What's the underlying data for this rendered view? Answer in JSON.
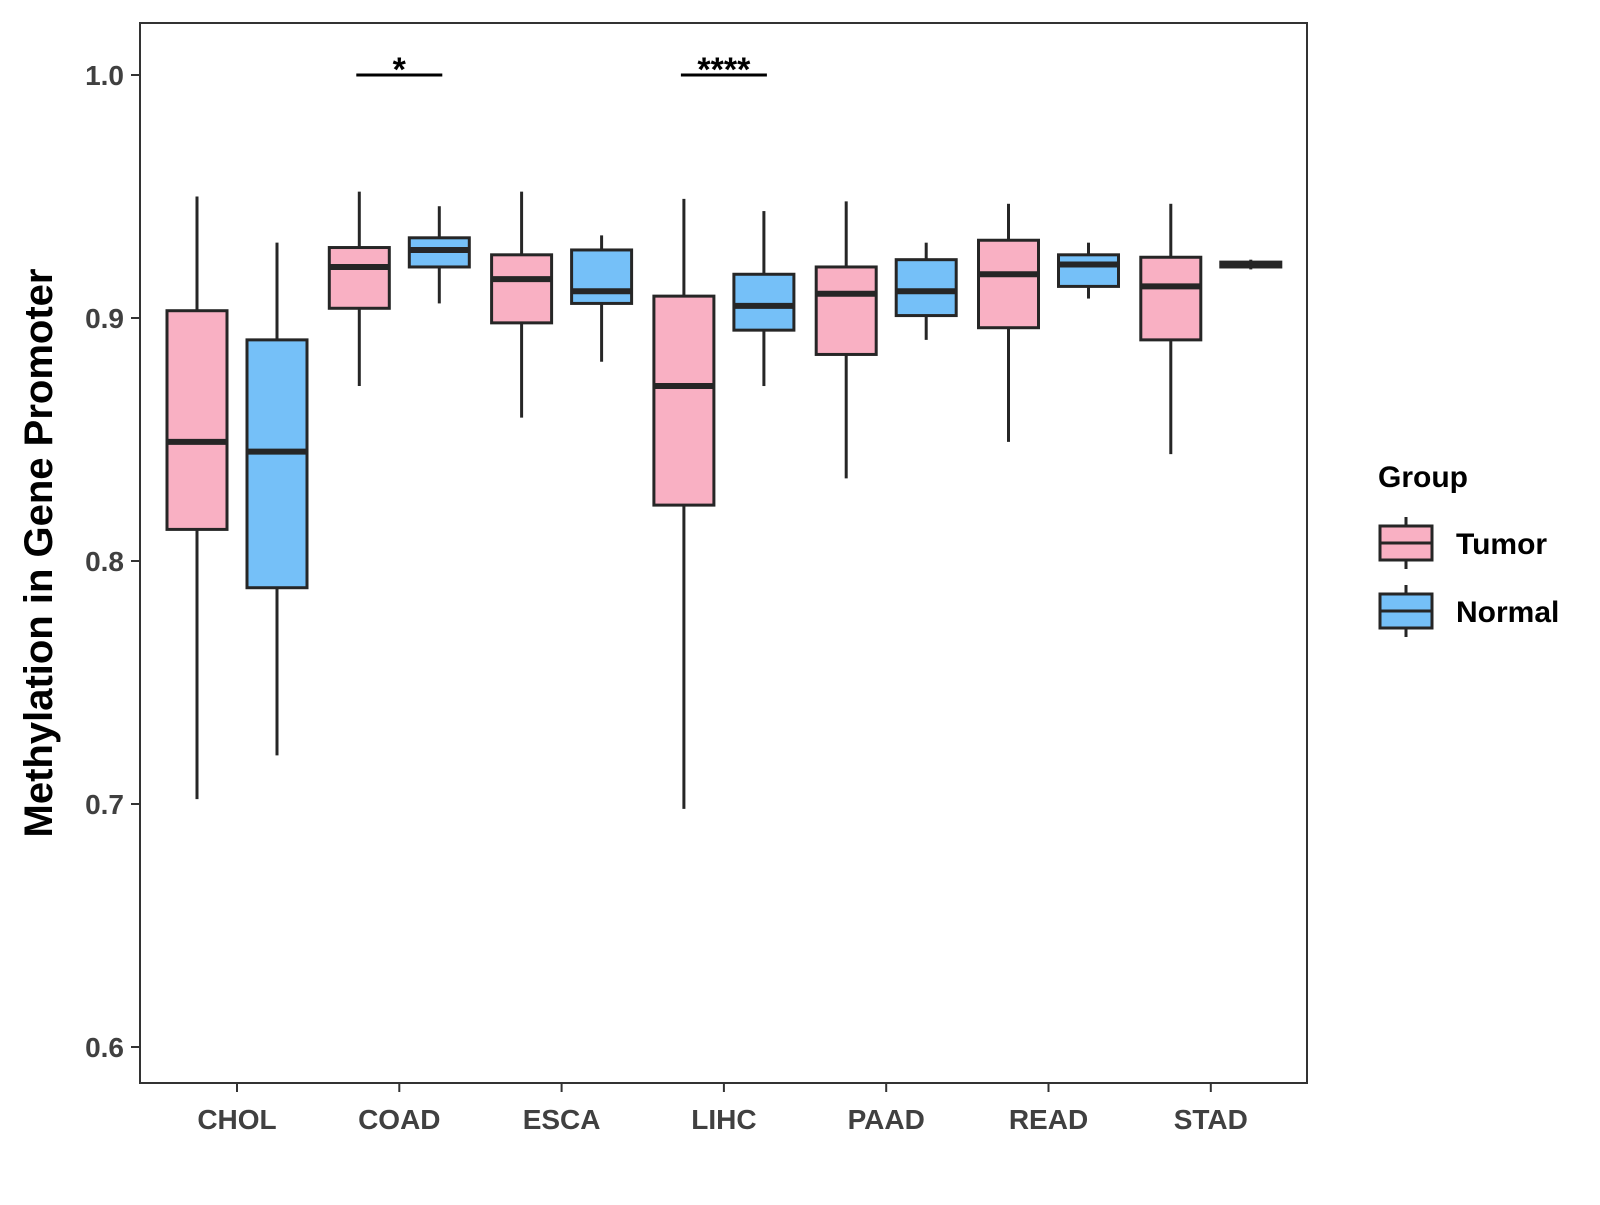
{
  "chart_data": {
    "type": "boxplot",
    "title": "",
    "xlabel": "",
    "ylabel": "Methylation in Gene Promoter",
    "ylim": [
      0.59,
      1.02
    ],
    "yticks": [
      0.6,
      0.7,
      0.8,
      0.9,
      1.0
    ],
    "ytick_labels": [
      "0.6",
      "0.7",
      "0.8",
      "0.9",
      "1.0"
    ],
    "categories": [
      "CHOL",
      "COAD",
      "ESCA",
      "LIHC",
      "PAAD",
      "READ",
      "STAD"
    ],
    "legend": {
      "title": "Group",
      "position": "right",
      "entries": [
        "Tumor",
        "Normal"
      ]
    },
    "colors": {
      "Tumor": "#F9B0C3",
      "Normal": "#75C0F8",
      "outline": "#262626"
    },
    "series": [
      {
        "name": "Tumor",
        "boxes": [
          {
            "category": "CHOL",
            "min": 0.702,
            "q1": 0.813,
            "median": 0.849,
            "q3": 0.903,
            "max": 0.95
          },
          {
            "category": "COAD",
            "min": 0.872,
            "q1": 0.904,
            "median": 0.921,
            "q3": 0.929,
            "max": 0.952
          },
          {
            "category": "ESCA",
            "min": 0.859,
            "q1": 0.898,
            "median": 0.916,
            "q3": 0.926,
            "max": 0.952
          },
          {
            "category": "LIHC",
            "min": 0.698,
            "q1": 0.823,
            "median": 0.872,
            "q3": 0.909,
            "max": 0.949
          },
          {
            "category": "PAAD",
            "min": 0.834,
            "q1": 0.885,
            "median": 0.91,
            "q3": 0.921,
            "max": 0.948
          },
          {
            "category": "READ",
            "min": 0.849,
            "q1": 0.896,
            "median": 0.918,
            "q3": 0.932,
            "max": 0.947
          },
          {
            "category": "STAD",
            "min": 0.844,
            "q1": 0.891,
            "median": 0.913,
            "q3": 0.925,
            "max": 0.947
          }
        ]
      },
      {
        "name": "Normal",
        "boxes": [
          {
            "category": "CHOL",
            "min": 0.72,
            "q1": 0.789,
            "median": 0.845,
            "q3": 0.891,
            "max": 0.931
          },
          {
            "category": "COAD",
            "min": 0.906,
            "q1": 0.921,
            "median": 0.928,
            "q3": 0.933,
            "max": 0.946
          },
          {
            "category": "ESCA",
            "min": 0.882,
            "q1": 0.906,
            "median": 0.911,
            "q3": 0.928,
            "max": 0.934
          },
          {
            "category": "LIHC",
            "min": 0.872,
            "q1": 0.895,
            "median": 0.905,
            "q3": 0.918,
            "max": 0.944
          },
          {
            "category": "PAAD",
            "min": 0.891,
            "q1": 0.901,
            "median": 0.911,
            "q3": 0.924,
            "max": 0.931
          },
          {
            "category": "READ",
            "min": 0.908,
            "q1": 0.913,
            "median": 0.922,
            "q3": 0.926,
            "max": 0.931
          },
          {
            "category": "STAD",
            "min": 0.92,
            "q1": 0.921,
            "median": 0.922,
            "q3": 0.923,
            "max": 0.924
          }
        ]
      }
    ],
    "significance": [
      {
        "category": "COAD",
        "label": "*",
        "y": 1.0
      },
      {
        "category": "LIHC",
        "label": "****",
        "y": 1.0
      }
    ]
  }
}
